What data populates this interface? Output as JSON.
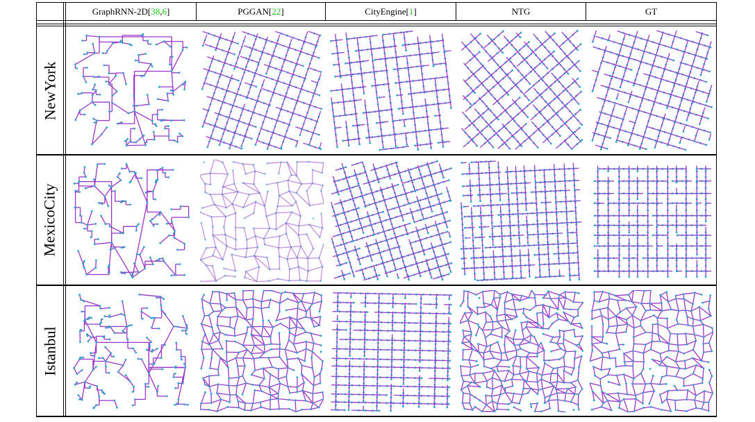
{
  "table": {
    "columns": [
      {
        "name": "GraphRNN-2D",
        "open": " [",
        "c1": "38",
        "sep": ", ",
        "c2": "6",
        "close": "]"
      },
      {
        "name": "PGGAN",
        "open": " [",
        "c1": "22",
        "sep": "",
        "c2": "",
        "close": "]"
      },
      {
        "name": "CityEngine",
        "open": " [",
        "c1": "1",
        "sep": "",
        "c2": "",
        "close": "]"
      },
      {
        "name": "NTG",
        "open": "",
        "c1": "",
        "sep": "",
        "c2": "",
        "close": ""
      },
      {
        "name": "GT",
        "open": "",
        "c1": "",
        "sep": "",
        "c2": "",
        "close": ""
      }
    ],
    "rows": [
      {
        "label": "NewYork"
      },
      {
        "label": "MexicoCity"
      },
      {
        "label": "Istanbul"
      }
    ]
  },
  "colors": {
    "edge": "#9a33c9",
    "node": "#23a8c9",
    "citation": "#19c219",
    "rule": "#000000"
  }
}
